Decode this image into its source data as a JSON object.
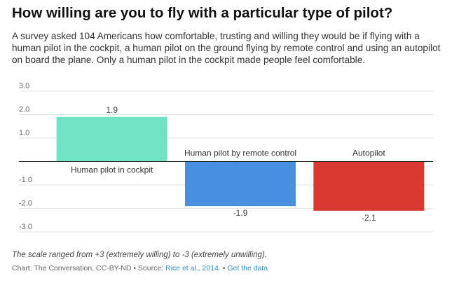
{
  "header": {
    "title": "How willing are you to fly with a particular type of pilot?",
    "subtitle": "A survey asked 104 Americans how comfortable, trusting and willing they would be if flying with a human pilot in the cockpit, a human pilot on the ground flying by remote control and using an autopilot on board the plane. Only a human pilot in the cockpit made people feel comfortable."
  },
  "chart_data": {
    "type": "bar",
    "categories": [
      "Human pilot in cockpit",
      "Human pilot by remote control",
      "Autopilot"
    ],
    "values": [
      1.9,
      -1.9,
      -2.1
    ],
    "value_labels": [
      "1.9",
      "-1.9",
      "-2.1"
    ],
    "colors": [
      "#6fe3c3",
      "#4a90e2",
      "#d83a2f"
    ],
    "ylim": [
      -3,
      3
    ],
    "yticks": [
      {
        "value": 3,
        "label": "3.0"
      },
      {
        "value": 2,
        "label": "2.0"
      },
      {
        "value": 1,
        "label": "1.0"
      },
      {
        "value": 0,
        "label": ""
      },
      {
        "value": -1,
        "label": "-1.0"
      },
      {
        "value": -2,
        "label": "-2.0"
      },
      {
        "value": -3,
        "label": "-3.0"
      }
    ],
    "grid": true,
    "title": "",
    "xlabel": "",
    "ylabel": ""
  },
  "footer": {
    "note": "The scale ranged from +3 (extremely willing) to -3 (extremely unwilling).",
    "credit_prefix": "Chart: The Conversation, CC-BY-ND • Source:",
    "source_link": "Rice et al., 2014.",
    "separator": "•",
    "data_link": "Get the data"
  }
}
